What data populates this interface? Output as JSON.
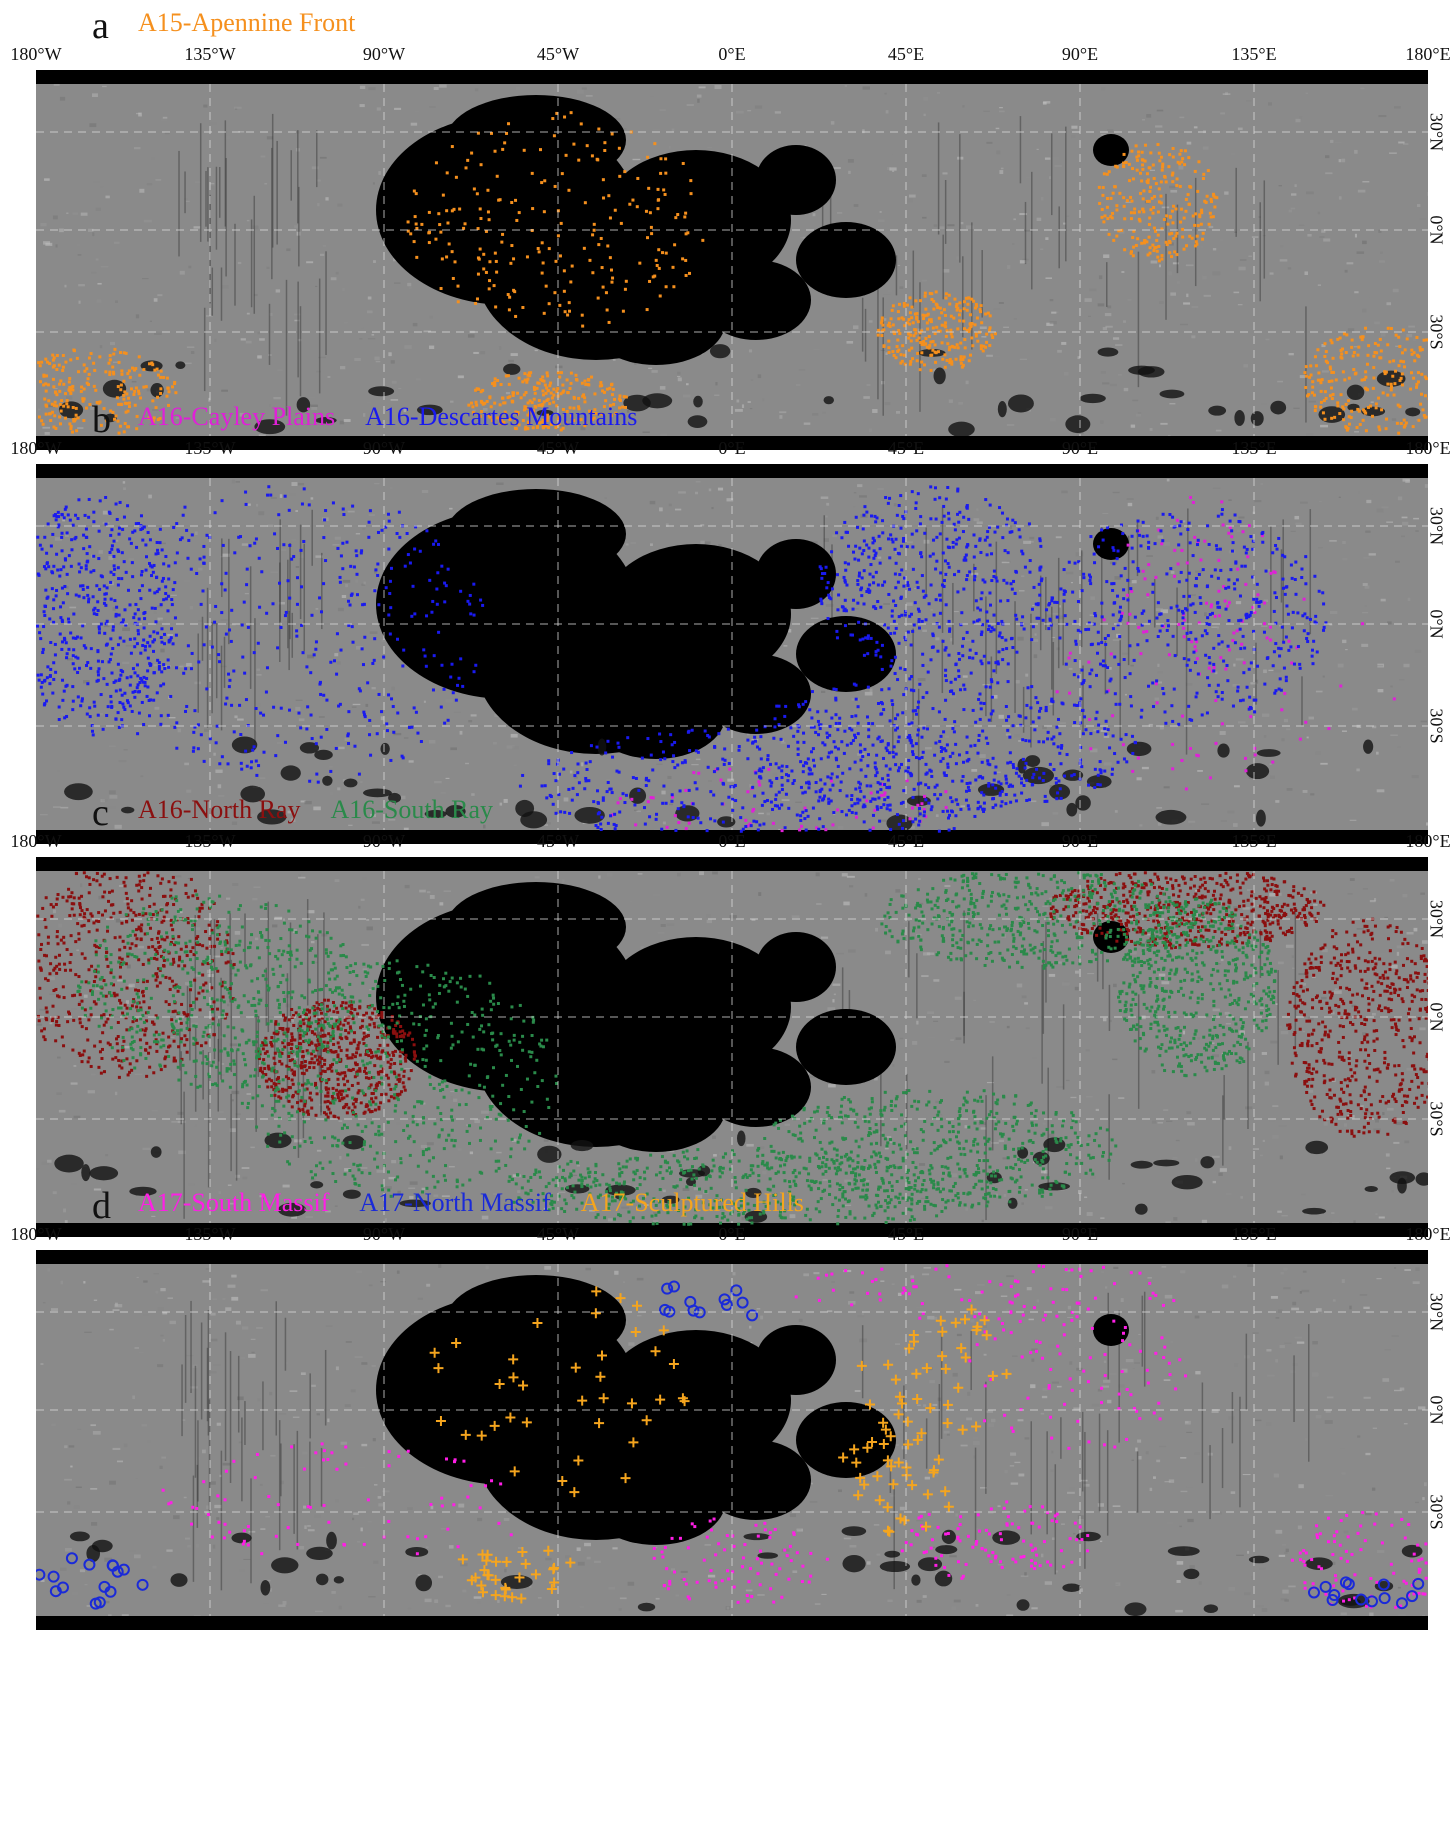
{
  "longitude_labels": [
    "180°W",
    "135°W",
    "90°W",
    "45°W",
    "0°E",
    "45°E",
    "90°E",
    "135°E",
    "180°E"
  ],
  "latitude_labels": [
    "30°N",
    "0°N",
    "30°S"
  ],
  "colors": {
    "background_gray": "#8a8a8a",
    "mare_black": "#000000",
    "grid_dash": "#d8d8d8"
  },
  "panels": [
    {
      "letter": "a",
      "legend": [
        {
          "label": "A15-Apennine Front",
          "color": "#f5901e",
          "marker": "dot"
        }
      ]
    },
    {
      "letter": "b",
      "legend": [
        {
          "label": "A16-Cayley Plains",
          "color": "#e020d8",
          "marker": "dot"
        },
        {
          "label": "A16-Descartes Mountains",
          "color": "#1a1aef",
          "marker": "dot"
        }
      ]
    },
    {
      "letter": "c",
      "legend": [
        {
          "label": "A16-North Ray",
          "color": "#8b0f0f",
          "marker": "dot"
        },
        {
          "label": "A16-South Ray",
          "color": "#2a8a4a",
          "marker": "dot"
        }
      ]
    },
    {
      "letter": "d",
      "legend": [
        {
          "label": "A17-South Massif",
          "color": "#ff1ee6",
          "marker": "dot"
        },
        {
          "label": "A17-North Massif",
          "color": "#1a2ad8",
          "marker": "circle"
        },
        {
          "label": "A17-Sculptured Hills",
          "color": "#f5a51e",
          "marker": "cross"
        }
      ]
    }
  ]
}
